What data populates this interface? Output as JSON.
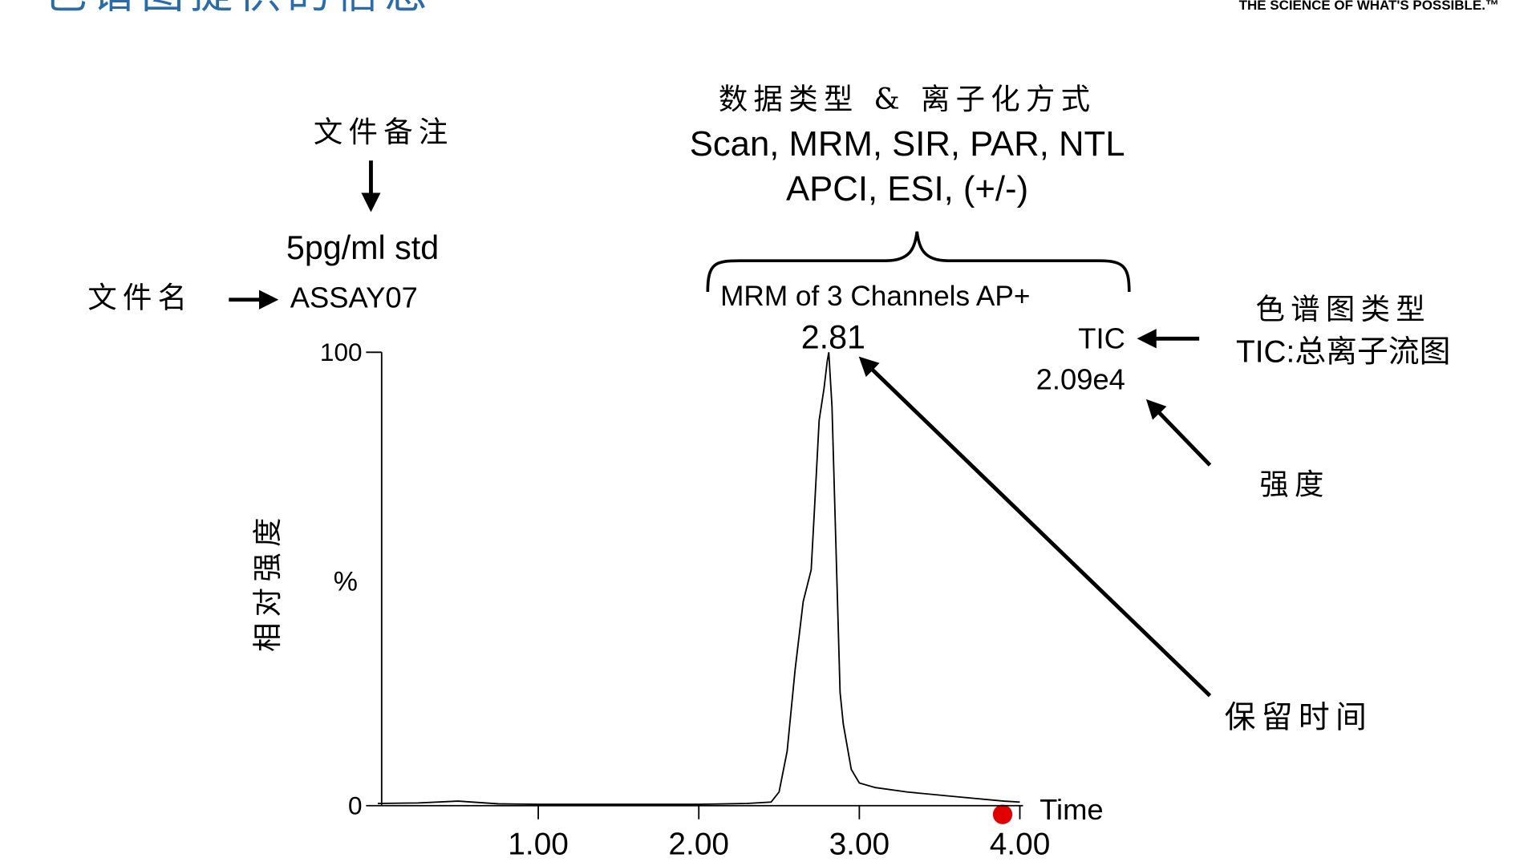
{
  "header": {
    "title": "色谱图提供的信息",
    "logo": "THE SCIENCE OF WHAT'S POSSIBLE.™"
  },
  "annotations": {
    "file_note_label": "文件备注",
    "file_note": "5pg/ml std",
    "file_name_label": "文件名",
    "file_name": "ASSAY07",
    "data_type_label": "数据类型 & 离子化方式",
    "data_types": "Scan, MRM, SIR, PAR, NTL",
    "ionization": "APCI, ESI, (+/-)",
    "function": "MRM of 3 Channels AP+",
    "peak_label": "2.81",
    "chrom_type": "TIC",
    "intensity": "2.09e4",
    "chrom_type_label": "色谱图类型",
    "tic_label": "TIC:总离子流图",
    "intensity_label": "强度",
    "rt_label": "保留时间"
  },
  "chart_data": {
    "type": "line",
    "color": "#000000",
    "x_label": "Time",
    "y_label": "%",
    "y_title": "相对强度",
    "x": [
      0,
      0.25,
      0.5,
      0.75,
      1.0,
      1.5,
      2.0,
      2.3,
      2.45,
      2.5,
      2.55,
      2.6,
      2.65,
      2.7,
      2.72,
      2.75,
      2.78,
      2.8,
      2.81,
      2.83,
      2.86,
      2.88,
      2.9,
      2.95,
      3.0,
      3.1,
      3.3,
      3.6,
      3.9,
      4.0
    ],
    "values": [
      0.5,
      0.6,
      1.0,
      0.4,
      0.3,
      0.3,
      0.3,
      0.5,
      0.8,
      3,
      12,
      30,
      45,
      52,
      65,
      85,
      92,
      98,
      100,
      88,
      50,
      25,
      18,
      8,
      5,
      4,
      3,
      2,
      1,
      0.8
    ],
    "xlim": [
      0,
      4.02
    ],
    "ylim": [
      0,
      100
    ],
    "xticks": [
      {
        "value": 1,
        "label": "1.00"
      },
      {
        "value": 2,
        "label": "2.00"
      },
      {
        "value": 3,
        "label": "3.00"
      },
      {
        "value": 4,
        "label": "4.00"
      }
    ],
    "yticks": [
      0,
      100
    ]
  }
}
